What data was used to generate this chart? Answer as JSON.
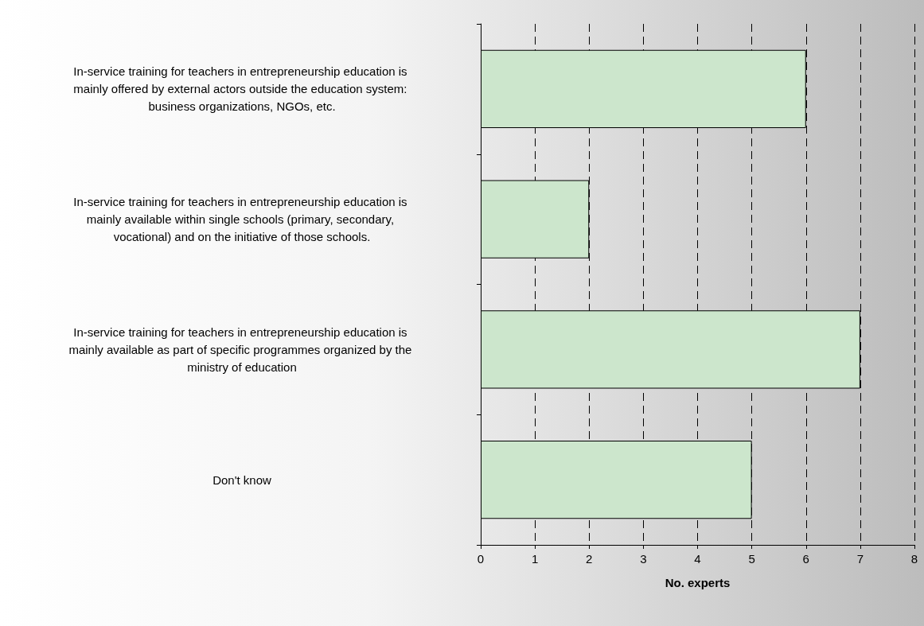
{
  "chart_data": {
    "type": "bar",
    "orientation": "horizontal",
    "xlabel": "No. experts",
    "categories": [
      "In-service training for teachers in entrepreneurship education is mainly offered by external actors outside the education system: business organizations, NGOs, etc.",
      "In-service training for teachers in entrepreneurship education is mainly available within single schools (primary, secondary, vocational) and on the initiative of those schools.",
      "In-service training for teachers in entrepreneurship education is mainly available as part of specific programmes organized by the ministry of education",
      "Don't know"
    ],
    "values": [
      6,
      2,
      7,
      5
    ],
    "color": "#cce6cc",
    "xlim": [
      0,
      8
    ],
    "xticks": [
      0,
      1,
      2,
      3,
      4,
      5,
      6,
      7,
      8
    ],
    "grid": "x"
  }
}
